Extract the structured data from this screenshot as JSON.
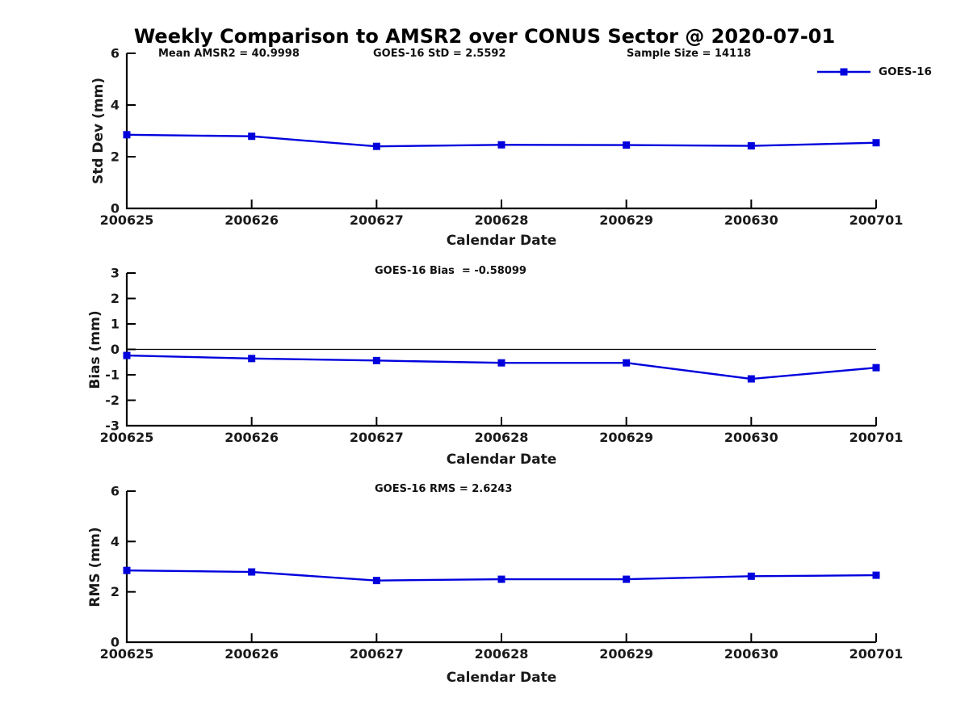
{
  "figure": {
    "title": "Weekly Comparison to AMSR2 over CONUS Sector @ 2020-07-01",
    "background_color": "#ffffff",
    "series_color": "#0000dd",
    "axis_color": "#000000",
    "text_color": "#1a1a1a"
  },
  "legend": {
    "label": "GOES-16",
    "position": "top-right"
  },
  "chart_data": [
    {
      "type": "line",
      "categories": [
        "200625",
        "200626",
        "200627",
        "200628",
        "200629",
        "200630",
        "200701"
      ],
      "series": [
        {
          "name": "GOES-16",
          "values": [
            2.85,
            2.79,
            2.4,
            2.46,
            2.45,
            2.42,
            2.54
          ]
        }
      ],
      "annotations": [
        "Mean AMSR2 = 40.9998",
        "GOES-16 StD = 2.5592",
        "Sample Size = 14118"
      ],
      "xlabel": "Calendar Date",
      "ylabel": "Std Dev (mm)",
      "ylim": [
        0,
        6
      ],
      "yticks": [
        0,
        2,
        4,
        6
      ],
      "zero_line": false,
      "grid": false,
      "marker": "square",
      "legend_position": "top-right"
    },
    {
      "type": "line",
      "categories": [
        "200625",
        "200626",
        "200627",
        "200628",
        "200629",
        "200630",
        "200701"
      ],
      "series": [
        {
          "name": "GOES-16",
          "values": [
            -0.24,
            -0.36,
            -0.44,
            -0.53,
            -0.53,
            -1.16,
            -0.72
          ]
        }
      ],
      "annotations": [
        "GOES-16 Bias  = -0.58099"
      ],
      "xlabel": "Calendar Date",
      "ylabel": "Bias (mm)",
      "ylim": [
        -3,
        3
      ],
      "yticks": [
        -3,
        -2,
        -1,
        0,
        1,
        2,
        3
      ],
      "zero_line": true,
      "grid": false,
      "marker": "square",
      "legend_position": "none"
    },
    {
      "type": "line",
      "categories": [
        "200625",
        "200626",
        "200627",
        "200628",
        "200629",
        "200630",
        "200701"
      ],
      "series": [
        {
          "name": "GOES-16",
          "values": [
            2.85,
            2.79,
            2.45,
            2.5,
            2.5,
            2.62,
            2.66
          ]
        }
      ],
      "annotations": [
        "GOES-16 RMS = 2.6243"
      ],
      "xlabel": "Calendar Date",
      "ylabel": "RMS (mm)",
      "ylim": [
        0,
        6
      ],
      "yticks": [
        0,
        2,
        4,
        6
      ],
      "zero_line": false,
      "grid": false,
      "marker": "square",
      "legend_position": "none"
    }
  ]
}
